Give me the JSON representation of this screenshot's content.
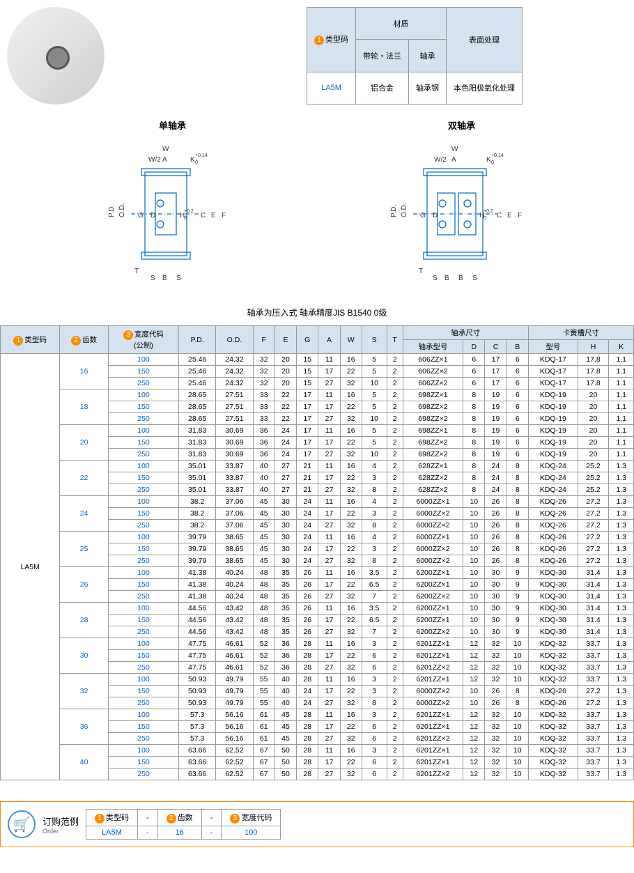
{
  "material": {
    "header_type": "类型码",
    "header_material": "材质",
    "header_surface": "表面处理",
    "sub_pulley": "带轮・法兰",
    "sub_bearing": "轴承",
    "type_code": "LA5M",
    "pulley_mat": "铝合金",
    "bearing_mat": "轴承钢",
    "surface": "本色阳极氧化处理"
  },
  "diagrams": {
    "single": "单轴承",
    "double": "双轴承",
    "labels": {
      "W": "W",
      "A": "A",
      "W2": "W/2",
      "K": "K",
      "Ktol": "+0.14",
      "Ktol2": "0",
      "PD": "P.D.",
      "OD": "O.D.",
      "G": "G",
      "D": "D",
      "H": "H",
      "Htol": "+0.2",
      "Htol2": "0",
      "C": "C",
      "E": "E",
      "F": "F",
      "T": "T",
      "S": "S",
      "B": "B"
    },
    "note": "轴承为压入式 轴承精度JIS B1540 0级"
  },
  "main": {
    "h_type": "类型码",
    "h_teeth": "齿数",
    "h_width": "宽度代码\n(公制)",
    "h_pd": "P.D.",
    "h_od": "O.D.",
    "h_f": "F",
    "h_e": "E",
    "h_g": "G",
    "h_a": "A",
    "h_w": "W",
    "h_s": "S",
    "h_t": "T",
    "h_bearing": "轴承尺寸",
    "h_snap": "卡簧槽尺寸",
    "h_bmodel": "轴承型号",
    "h_d": "D",
    "h_c": "C",
    "h_b": "B",
    "h_model": "型号",
    "h_h": "H",
    "h_k": "K",
    "type_code": "LA5M",
    "groups": [
      {
        "teeth": "16",
        "rows": [
          [
            "100",
            "25.46",
            "24.32",
            "32",
            "20",
            "15",
            "11",
            "16",
            "5",
            "2",
            "606ZZ×1",
            "6",
            "17",
            "6",
            "KDQ-17",
            "17.8",
            "1.1"
          ],
          [
            "150",
            "25.46",
            "24.32",
            "32",
            "20",
            "15",
            "17",
            "22",
            "5",
            "2",
            "606ZZ×2",
            "6",
            "17",
            "6",
            "KDQ-17",
            "17.8",
            "1.1"
          ],
          [
            "250",
            "25.46",
            "24.32",
            "32",
            "20",
            "15",
            "27",
            "32",
            "10",
            "2",
            "606ZZ×2",
            "6",
            "17",
            "6",
            "KDQ-17",
            "17.8",
            "1.1"
          ]
        ]
      },
      {
        "teeth": "18",
        "rows": [
          [
            "100",
            "28.65",
            "27.51",
            "33",
            "22",
            "17",
            "11",
            "16",
            "5",
            "2",
            "698ZZ×1",
            "8",
            "19",
            "6",
            "KDQ-19",
            "20",
            "1.1"
          ],
          [
            "150",
            "28.65",
            "27.51",
            "33",
            "22",
            "17",
            "17",
            "22",
            "5",
            "2",
            "698ZZ×2",
            "8",
            "19",
            "6",
            "KDQ-19",
            "20",
            "1.1"
          ],
          [
            "250",
            "28.65",
            "27.51",
            "33",
            "22",
            "17",
            "27",
            "32",
            "10",
            "2",
            "698ZZ×2",
            "8",
            "19",
            "6",
            "KDQ-19",
            "20",
            "1.1"
          ]
        ]
      },
      {
        "teeth": "20",
        "rows": [
          [
            "100",
            "31.83",
            "30.69",
            "36",
            "24",
            "17",
            "11",
            "16",
            "5",
            "2",
            "698ZZ×1",
            "8",
            "19",
            "6",
            "KDQ-19",
            "20",
            "1.1"
          ],
          [
            "150",
            "31.83",
            "30.69",
            "36",
            "24",
            "17",
            "17",
            "22",
            "5",
            "2",
            "698ZZ×2",
            "8",
            "19",
            "6",
            "KDQ-19",
            "20",
            "1.1"
          ],
          [
            "250",
            "31.83",
            "30.69",
            "36",
            "24",
            "17",
            "27",
            "32",
            "10",
            "2",
            "698ZZ×2",
            "8",
            "19",
            "6",
            "KDQ-19",
            "20",
            "1.1"
          ]
        ]
      },
      {
        "teeth": "22",
        "rows": [
          [
            "100",
            "35.01",
            "33.87",
            "40",
            "27",
            "21",
            "11",
            "16",
            "4",
            "2",
            "628ZZ×1",
            "8",
            "24",
            "8",
            "KDQ-24",
            "25.2",
            "1.3"
          ],
          [
            "150",
            "35.01",
            "33.87",
            "40",
            "27",
            "21",
            "17",
            "22",
            "3",
            "2",
            "628ZZ×2",
            "8",
            "24",
            "8",
            "KDQ-24",
            "25.2",
            "1.3"
          ],
          [
            "250",
            "35.01",
            "33.87",
            "40",
            "27",
            "21",
            "27",
            "32",
            "8",
            "2",
            "628ZZ×2",
            "8",
            "24",
            "8",
            "KDQ-24",
            "25.2",
            "1.3"
          ]
        ]
      },
      {
        "teeth": "24",
        "rows": [
          [
            "100",
            "38.2",
            "37.06",
            "45",
            "30",
            "24",
            "11",
            "16",
            "4",
            "2",
            "6000ZZ×1",
            "10",
            "26",
            "8",
            "KDQ-26",
            "27.2",
            "1.3"
          ],
          [
            "150",
            "38.2",
            "37.06",
            "45",
            "30",
            "24",
            "17",
            "22",
            "3",
            "2",
            "6000ZZ×2",
            "10",
            "26",
            "8",
            "KDQ-26",
            "27.2",
            "1.3"
          ],
          [
            "250",
            "38.2",
            "37.06",
            "45",
            "30",
            "24",
            "27",
            "32",
            "8",
            "2",
            "6000ZZ×2",
            "10",
            "26",
            "8",
            "KDQ-26",
            "27.2",
            "1.3"
          ]
        ]
      },
      {
        "teeth": "25",
        "rows": [
          [
            "100",
            "39.79",
            "38.65",
            "45",
            "30",
            "24",
            "11",
            "16",
            "4",
            "2",
            "6000ZZ×1",
            "10",
            "26",
            "8",
            "KDQ-26",
            "27.2",
            "1.3"
          ],
          [
            "150",
            "39.79",
            "38.65",
            "45",
            "30",
            "24",
            "17",
            "22",
            "3",
            "2",
            "6000ZZ×2",
            "10",
            "26",
            "8",
            "KDQ-26",
            "27.2",
            "1.3"
          ],
          [
            "250",
            "39.79",
            "38.65",
            "45",
            "30",
            "24",
            "27",
            "32",
            "8",
            "2",
            "6000ZZ×2",
            "10",
            "26",
            "8",
            "KDQ-26",
            "27.2",
            "1.3"
          ]
        ]
      },
      {
        "teeth": "26",
        "rows": [
          [
            "100",
            "41.38",
            "40.24",
            "48",
            "35",
            "26",
            "11",
            "16",
            "3.5",
            "2",
            "6200ZZ×1",
            "10",
            "30",
            "9",
            "KDQ-30",
            "31.4",
            "1.3"
          ],
          [
            "150",
            "41.38",
            "40.24",
            "48",
            "35",
            "26",
            "17",
            "22",
            "6.5",
            "2",
            "6200ZZ×1",
            "10",
            "30",
            "9",
            "KDQ-30",
            "31.4",
            "1.3"
          ],
          [
            "250",
            "41.38",
            "40.24",
            "48",
            "35",
            "26",
            "27",
            "32",
            "7",
            "2",
            "6200ZZ×2",
            "10",
            "30",
            "9",
            "KDQ-30",
            "31.4",
            "1.3"
          ]
        ]
      },
      {
        "teeth": "28",
        "rows": [
          [
            "100",
            "44.56",
            "43.42",
            "48",
            "35",
            "26",
            "11",
            "16",
            "3.5",
            "2",
            "6200ZZ×1",
            "10",
            "30",
            "9",
            "KDQ-30",
            "31.4",
            "1.3"
          ],
          [
            "150",
            "44.56",
            "43.42",
            "48",
            "35",
            "26",
            "17",
            "22",
            "6.5",
            "2",
            "6200ZZ×1",
            "10",
            "30",
            "9",
            "KDQ-30",
            "31.4",
            "1.3"
          ],
          [
            "250",
            "44.56",
            "43.42",
            "48",
            "35",
            "26",
            "27",
            "32",
            "7",
            "2",
            "6200ZZ×2",
            "10",
            "30",
            "9",
            "KDQ-30",
            "31.4",
            "1.3"
          ]
        ]
      },
      {
        "teeth": "30",
        "rows": [
          [
            "100",
            "47.75",
            "46.61",
            "52",
            "36",
            "28",
            "11",
            "16",
            "3",
            "2",
            "6201ZZ×1",
            "12",
            "32",
            "10",
            "KDQ-32",
            "33.7",
            "1.3"
          ],
          [
            "150",
            "47.75",
            "46.61",
            "52",
            "36",
            "28",
            "17",
            "22",
            "6",
            "2",
            "6201ZZ×1",
            "12",
            "32",
            "10",
            "KDQ-32",
            "33.7",
            "1.3"
          ],
          [
            "250",
            "47.75",
            "46.61",
            "52",
            "36",
            "28",
            "27",
            "32",
            "6",
            "2",
            "6201ZZ×2",
            "12",
            "32",
            "10",
            "KDQ-32",
            "33.7",
            "1.3"
          ]
        ]
      },
      {
        "teeth": "32",
        "rows": [
          [
            "100",
            "50.93",
            "49.79",
            "55",
            "40",
            "28",
            "11",
            "16",
            "3",
            "2",
            "6201ZZ×1",
            "12",
            "32",
            "10",
            "KDQ-32",
            "33.7",
            "1.3"
          ],
          [
            "150",
            "50.93",
            "49.79",
            "55",
            "40",
            "24",
            "17",
            "22",
            "3",
            "2",
            "6000ZZ×2",
            "10",
            "26",
            "8",
            "KDQ-26",
            "27.2",
            "1.3"
          ],
          [
            "250",
            "50.93",
            "49.79",
            "55",
            "40",
            "24",
            "27",
            "32",
            "8",
            "2",
            "6000ZZ×2",
            "10",
            "26",
            "8",
            "KDQ-26",
            "27.2",
            "1.3"
          ]
        ]
      },
      {
        "teeth": "36",
        "rows": [
          [
            "100",
            "57.3",
            "56.16",
            "61",
            "45",
            "28",
            "11",
            "16",
            "3",
            "2",
            "6201ZZ×1",
            "12",
            "32",
            "10",
            "KDQ-32",
            "33.7",
            "1.3"
          ],
          [
            "150",
            "57.3",
            "56.16",
            "61",
            "45",
            "28",
            "17",
            "22",
            "6",
            "2",
            "6201ZZ×1",
            "12",
            "32",
            "10",
            "KDQ-32",
            "33.7",
            "1.3"
          ],
          [
            "250",
            "57.3",
            "56.16",
            "61",
            "45",
            "28",
            "27",
            "32",
            "6",
            "2",
            "6201ZZ×2",
            "12",
            "32",
            "10",
            "KDQ-32",
            "33.7",
            "1.3"
          ]
        ]
      },
      {
        "teeth": "40",
        "rows": [
          [
            "100",
            "63.66",
            "62.52",
            "67",
            "50",
            "28",
            "11",
            "16",
            "3",
            "2",
            "6201ZZ×1",
            "12",
            "32",
            "10",
            "KDQ-32",
            "33.7",
            "1.3"
          ],
          [
            "150",
            "63.66",
            "62.52",
            "67",
            "50",
            "28",
            "17",
            "22",
            "6",
            "2",
            "6201ZZ×1",
            "12",
            "32",
            "10",
            "KDQ-32",
            "33.7",
            "1.3"
          ],
          [
            "250",
            "63.66",
            "62.52",
            "67",
            "50",
            "28",
            "27",
            "32",
            "6",
            "2",
            "6201ZZ×2",
            "12",
            "32",
            "10",
            "KDQ-32",
            "33.7",
            "1.3"
          ]
        ]
      }
    ]
  },
  "order": {
    "title": "订购范例",
    "sub": "Order",
    "h_type": "类型码",
    "h_teeth": "齿数",
    "h_width": "宽度代码",
    "v_type": "LA5M",
    "v_teeth": "16",
    "v_width": "100",
    "dash": "-"
  }
}
